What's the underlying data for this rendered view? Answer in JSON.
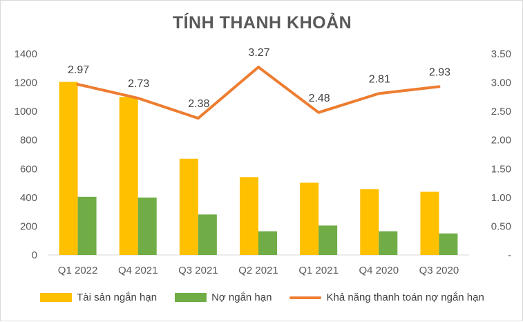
{
  "chart_data": {
    "type": "bar",
    "title": "TÍNH THANH KHOẢN",
    "categories": [
      "Q1 2022",
      "Q4 2021",
      "Q3 2021",
      "Q2 2021",
      "Q1 2021",
      "Q4 2020",
      "Q3 2020"
    ],
    "series": [
      {
        "name": "Tài sản ngắn hạn",
        "type": "bar",
        "axis": "left",
        "color": "#FFC000",
        "values": [
          1205,
          1100,
          670,
          542,
          503,
          458,
          440
        ]
      },
      {
        "name": "Nợ ngắn hạn",
        "type": "bar",
        "axis": "left",
        "color": "#70AD47",
        "values": [
          405,
          400,
          282,
          165,
          205,
          165,
          150
        ]
      },
      {
        "name": "Khả năng thanh toán nợ ngắn hạn",
        "type": "line",
        "axis": "right",
        "color": "#ED7D31",
        "values": [
          2.97,
          2.73,
          2.38,
          3.27,
          2.48,
          2.81,
          2.93
        ],
        "labels": [
          "2.97",
          "2.73",
          "2.38",
          "3.27",
          "2.48",
          "2.81",
          "2.93"
        ]
      }
    ],
    "y_left": {
      "ylim": [
        0,
        1400
      ],
      "ticks": [
        0,
        200,
        400,
        600,
        800,
        1000,
        1200,
        1400
      ],
      "tick_labels": [
        "0",
        "200",
        "400",
        "600",
        "800",
        "1000",
        "1200",
        "1400"
      ]
    },
    "y_right": {
      "ylim": [
        0,
        3.5
      ],
      "ticks": [
        0,
        0.5,
        1.0,
        1.5,
        2.0,
        2.5,
        3.0,
        3.5
      ],
      "tick_labels": [
        "-",
        "0.50",
        "1.00",
        "1.50",
        "2.00",
        "2.50",
        "3.00",
        "3.50"
      ]
    },
    "grid": false,
    "legend": "bottom"
  }
}
